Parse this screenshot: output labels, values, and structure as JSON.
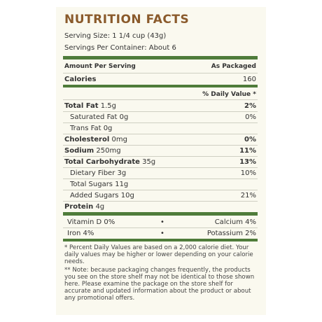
{
  "title": "NUTRITION FACTS",
  "serving_size": "Serving Size: 1 1/4 cup (43g)",
  "servings_per_container": "Servings Per Container: About 6",
  "header": {
    "amount_per_serving": "Amount Per Serving",
    "as_packaged": "As Packaged"
  },
  "calories": {
    "label": "Calories",
    "value": "160"
  },
  "daily_value_header": "% Daily Value *",
  "nutrients": [
    {
      "label": "Total Fat",
      "amount": "1.5g",
      "dv": "2%"
    },
    {
      "label": "Saturated Fat",
      "amount": "0g",
      "dv": "0%"
    },
    {
      "label": "Trans Fat",
      "amount": "0g",
      "dv": ""
    },
    {
      "label": "Cholesterol",
      "amount": "0mg",
      "dv": "0%"
    },
    {
      "label": "Sodium",
      "amount": "250mg",
      "dv": "11%"
    },
    {
      "label": "Total Carbohydrate",
      "amount": "35g",
      "dv": "13%"
    },
    {
      "label": "Dietary Fiber",
      "amount": "3g",
      "dv": "10%"
    },
    {
      "label": "Total Sugars",
      "amount": "11g",
      "dv": ""
    },
    {
      "label": "Added Sugars",
      "amount": "10g",
      "dv": "21%"
    },
    {
      "label": "Protein",
      "amount": "4g",
      "dv": ""
    }
  ],
  "vitamins": [
    {
      "left": "Vitamin D  0%",
      "bullet": "•",
      "right": "Calcium  4%"
    },
    {
      "left": "Iron  4%",
      "bullet": "•",
      "right": "Potassium  2%"
    }
  ],
  "footnote_1": "* Percent Daily Values are based on a 2,000 calorie diet. Your daily values may be higher or lower depending on your calorie needs.",
  "footnote_2": "** Note: because packaging changes frequently, the products you see on the store shelf may not be identical to those shown here. Please examine the package on the store shelf for accurate and updated information about the product or about any promotional offers.",
  "colors": {
    "title": "#8a5a2b",
    "bars": "#4f7c3a",
    "panel": "#faf9ef"
  }
}
